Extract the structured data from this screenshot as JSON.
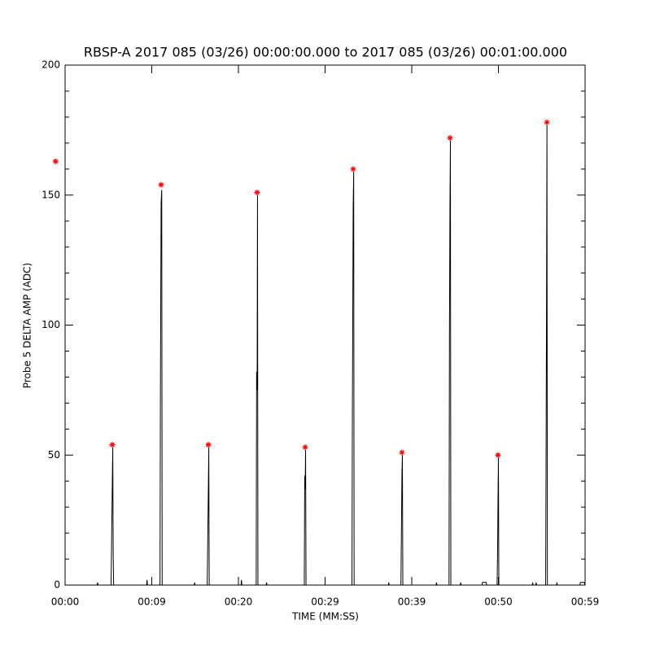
{
  "chart_data": {
    "type": "line",
    "title": "RBSP-A 2017 085 (03/26) 00:00:00.000 to 2017 085 (03/26) 00:01:00.000",
    "x_label": "TIME (MM:SS)",
    "y_label": "Probe 5 DELTA AMP (ADC)",
    "xlim": [
      0,
      60
    ],
    "ylim": [
      0,
      200
    ],
    "xticks": [
      {
        "value": 0,
        "label": "00:00"
      },
      {
        "value": 9.999,
        "label": "00:09"
      },
      {
        "value": 20,
        "label": "00:20"
      },
      {
        "value": 29.999,
        "label": "00:29"
      },
      {
        "value": 39.999,
        "label": "00:39"
      },
      {
        "value": 50,
        "label": "00:50"
      },
      {
        "value": 59.999,
        "label": "00:59"
      }
    ],
    "yticks": [
      0,
      50,
      100,
      150,
      200
    ],
    "y_minor_ticks": 5,
    "series": [
      {
        "style": "line",
        "color": "#000000",
        "x": [
          0,
          3.7,
          3.75,
          3.8,
          5.3,
          5.35,
          5.45,
          5.5,
          5.55,
          5.6,
          9.4,
          9.45,
          9.5,
          10.95,
          11.0,
          11.08,
          11.15,
          11.2,
          14.9,
          14.95,
          15.0,
          16.4,
          16.45,
          16.53,
          16.58,
          16.63,
          20.3,
          20.35,
          20.4,
          22.05,
          22.1,
          22.16,
          22.2,
          22.25,
          23.2,
          23.25,
          23.3,
          27.6,
          27.65,
          27.7,
          27.75,
          27.8,
          33.1,
          33.15,
          33.24,
          33.3,
          33.35,
          37.3,
          37.35,
          37.4,
          38.75,
          38.8,
          38.87,
          38.92,
          38.97,
          42.8,
          42.85,
          42.9,
          44.3,
          44.35,
          44.41,
          44.46,
          44.51,
          45.6,
          45.65,
          45.7,
          48.1,
          48.15,
          48.6,
          48.65,
          49.85,
          49.9,
          49.95,
          50.0,
          50.05,
          53.9,
          53.95,
          54.0,
          54.3,
          54.35,
          54.4,
          55.45,
          55.5,
          55.55,
          55.6,
          55.65,
          56.7,
          56.75,
          56.8,
          59.4,
          59.45,
          59.9,
          60
        ],
        "values": [
          0,
          0,
          1,
          0,
          0,
          12,
          40,
          53,
          12,
          0,
          0,
          2,
          0,
          0,
          75,
          147,
          152,
          0,
          0,
          1,
          0,
          0,
          14,
          37,
          53,
          0,
          0,
          2,
          0,
          0,
          82,
          75,
          150,
          0,
          0,
          1,
          0,
          0,
          42,
          37,
          52,
          0,
          0,
          66,
          145,
          159,
          0,
          0,
          1,
          0,
          0,
          18,
          43,
          50,
          0,
          0,
          1,
          0,
          0,
          98,
          146,
          171,
          0,
          0,
          1,
          0,
          0,
          1,
          1,
          0,
          0,
          12,
          32,
          49,
          0,
          0,
          1,
          0,
          0,
          1,
          0,
          0,
          53,
          105,
          177,
          0,
          0,
          1,
          0,
          0,
          1,
          1,
          0
        ]
      },
      {
        "style": "star",
        "color": "#ff0000",
        "x": [
          -1.1,
          5.45,
          11.08,
          16.53,
          22.16,
          27.7,
          33.24,
          38.87,
          44.41,
          49.95,
          55.59
        ],
        "values": [
          163,
          54,
          154,
          54,
          151,
          53,
          160,
          51,
          172,
          50,
          178
        ]
      }
    ]
  }
}
